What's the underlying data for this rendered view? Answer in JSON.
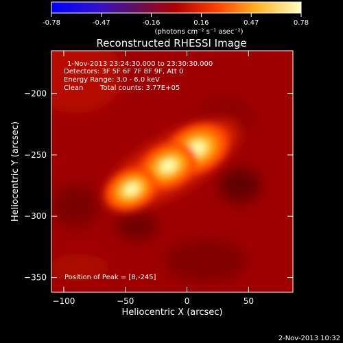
{
  "chart_data": {
    "type": "heatmap",
    "title": "Reconstructed RHESSI Image",
    "xlabel": "Heliocentric X (arcsec)",
    "ylabel": "Heliocentric Y (arcsec)",
    "xlim": [
      -110,
      86
    ],
    "ylim": [
      -362,
      -165
    ],
    "xticks": [
      -100,
      -50,
      0,
      50
    ],
    "yticks": [
      -200,
      -250,
      -300,
      -350
    ],
    "colorbar": {
      "ticks": [
        "-0.78",
        "-0.47",
        "-0.16",
        "0.16",
        "0.47",
        "0.78"
      ],
      "units": "(photons cm⁻² s⁻¹ asec⁻²)",
      "range": [
        -0.78,
        0.78
      ]
    },
    "info": {
      "time_range": "1-Nov-2013 23:24:30.000 to 23:30:30.000",
      "detectors": "Detectors: 3F 5F 6F 7F 8F 9F, Att 0",
      "energy": "Energy Range: 3.0 - 6.0 keV",
      "method": "Clean",
      "counts": "Total counts: 3.77E+05"
    },
    "peak_label": "Position of Peak = [8,-245]",
    "sources": [
      {
        "x": 8,
        "y": -245,
        "intensity": 0.78
      },
      {
        "x": -15,
        "y": -259,
        "intensity": 0.7
      },
      {
        "x": -45,
        "y": -278,
        "intensity": 0.62
      }
    ],
    "timestamp": "2-Nov-2013 10:32"
  }
}
